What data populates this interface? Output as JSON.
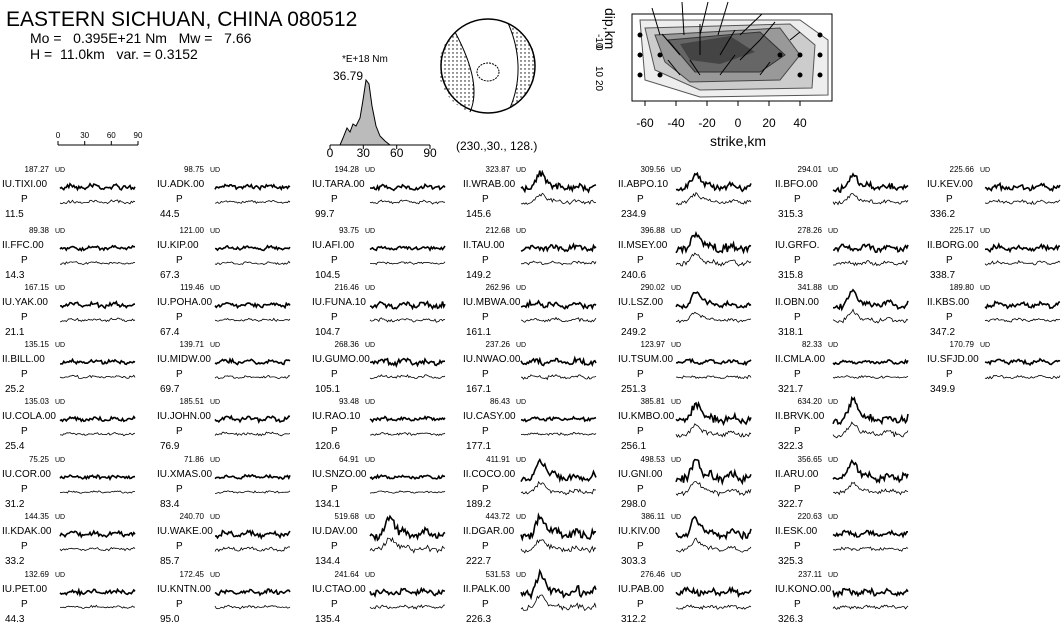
{
  "header": {
    "title": "EASTERN SICHUAN, CHINA 080512",
    "line1": "Mo =   0.395E+21 Nm   Mw =   7.66",
    "line2": "H =  11.0km   var. = 0.3152"
  },
  "moment_rate": {
    "unit": "*E+18 Nm",
    "peak": "36.79",
    "xticks": [
      "0",
      "30",
      "60",
      "90"
    ]
  },
  "time_scale": {
    "ticks": [
      "0",
      "30",
      "60",
      "90"
    ]
  },
  "mechanism": {
    "label": "(230.,30., 128.)"
  },
  "slip_map": {
    "ylabel": "dip,km",
    "yticks": [
      "-10",
      "0",
      "10",
      "20"
    ],
    "xticks": [
      "-60",
      "-40",
      "-20",
      "0",
      "20",
      "40"
    ],
    "xlabel": "strike,km"
  },
  "component": "UD",
  "phase": "P",
  "stations": [
    [
      {
        "name": "IU.TIXI.00",
        "amp": "187.27",
        "az": "11.5"
      },
      {
        "name": "II.FFC.00",
        "amp": "89.38",
        "az": "14.3"
      },
      {
        "name": "IU.YAK.00",
        "amp": "167.15",
        "az": "21.1"
      },
      {
        "name": "II.BILL.00",
        "amp": "135.15",
        "az": "25.2"
      },
      {
        "name": "IU.COLA.00",
        "amp": "135.03",
        "az": "25.4"
      },
      {
        "name": "IU.COR.00",
        "amp": "75.25",
        "az": "31.2"
      },
      {
        "name": "II.KDAK.00",
        "amp": "144.35",
        "az": "33.2"
      },
      {
        "name": "IU.PET.00",
        "amp": "132.69",
        "az": "44.3"
      }
    ],
    [
      {
        "name": "IU.ADK.00",
        "amp": "98.75",
        "az": "44.5"
      },
      {
        "name": "IU.KIP.00",
        "amp": "121.00",
        "az": "67.3"
      },
      {
        "name": "IU.POHA.00",
        "amp": "119.46",
        "az": "67.4"
      },
      {
        "name": "IU.MIDW.00",
        "amp": "139.71",
        "az": "69.7"
      },
      {
        "name": "IU.JOHN.00",
        "amp": "185.51",
        "az": "76.9"
      },
      {
        "name": "IU.XMAS.00",
        "amp": "71.86",
        "az": "83.4"
      },
      {
        "name": "IU.WAKE.00",
        "amp": "240.70",
        "az": "85.7"
      },
      {
        "name": "IU.KNTN.00",
        "amp": "172.45",
        "az": "95.0"
      }
    ],
    [
      {
        "name": "IU.TARA.00",
        "amp": "194.28",
        "az": "99.7"
      },
      {
        "name": "IU.AFI.00",
        "amp": "93.75",
        "az": "104.5"
      },
      {
        "name": "IU.FUNA.10",
        "amp": "216.46",
        "az": "104.7"
      },
      {
        "name": "IU.GUMO.00",
        "amp": "268.36",
        "az": "105.1"
      },
      {
        "name": "IU.RAO.10",
        "amp": "93.48",
        "az": "120.6"
      },
      {
        "name": "IU.SNZO.00",
        "amp": "64.91",
        "az": "134.1"
      },
      {
        "name": "IU.DAV.00",
        "amp": "519.68",
        "az": "134.4"
      },
      {
        "name": "IU.CTAO.00",
        "amp": "241.64",
        "az": "135.4"
      }
    ],
    [
      {
        "name": "II.WRAB.00",
        "amp": "323.87",
        "az": "145.6"
      },
      {
        "name": "II.TAU.00",
        "amp": "212.68",
        "az": "149.2"
      },
      {
        "name": "IU.MBWA.00",
        "amp": "262.96",
        "az": "161.1"
      },
      {
        "name": "IU.NWAO.00",
        "amp": "237.26",
        "az": "167.1"
      },
      {
        "name": "IU.CASY.00",
        "amp": "86.43",
        "az": "177.1"
      },
      {
        "name": "II.COCO.00",
        "amp": "411.91",
        "az": "189.2"
      },
      {
        "name": "II.DGAR.00",
        "amp": "443.72",
        "az": "222.7"
      },
      {
        "name": "II.PALK.00",
        "amp": "531.53",
        "az": "226.3"
      }
    ],
    [
      {
        "name": "II.ABPO.10",
        "amp": "309.56",
        "az": "234.9"
      },
      {
        "name": "II.MSEY.00",
        "amp": "396.88",
        "az": "240.6"
      },
      {
        "name": "IU.LSZ.00",
        "amp": "290.02",
        "az": "249.2"
      },
      {
        "name": "IU.TSUM.00",
        "amp": "123.97",
        "az": "251.3"
      },
      {
        "name": "IU.KMBO.00",
        "amp": "385.81",
        "az": "256.1"
      },
      {
        "name": "IU.GNI.00",
        "amp": "498.53",
        "az": "298.0"
      },
      {
        "name": "IU.KIV.00",
        "amp": "386.11",
        "az": "303.3"
      },
      {
        "name": "IU.PAB.00",
        "amp": "276.46",
        "az": "312.2"
      }
    ],
    [
      {
        "name": "II.BFO.00",
        "amp": "294.01",
        "az": "315.3"
      },
      {
        "name": "IU.GRFO.",
        "amp": "278.26",
        "az": "315.8"
      },
      {
        "name": "II.OBN.00",
        "amp": "341.88",
        "az": "318.1"
      },
      {
        "name": "II.CMLA.00",
        "amp": "82.33",
        "az": "321.7"
      },
      {
        "name": "II.BRVK.00",
        "amp": "634.20",
        "az": "322.3"
      },
      {
        "name": "II.ARU.00",
        "amp": "356.65",
        "az": "322.7"
      },
      {
        "name": "II.ESK.00",
        "amp": "220.63",
        "az": "325.3"
      },
      {
        "name": "IU.KONO.00",
        "amp": "237.11",
        "az": "326.3"
      }
    ],
    [
      {
        "name": "IU.KEV.00",
        "amp": "225.66",
        "az": "336.2"
      },
      {
        "name": "II.BORG.00",
        "amp": "225.17",
        "az": "338.7"
      },
      {
        "name": "II.KBS.00",
        "amp": "189.80",
        "az": "347.2"
      },
      {
        "name": "IU.SFJD.00",
        "amp": "170.79",
        "az": "349.9"
      }
    ]
  ]
}
